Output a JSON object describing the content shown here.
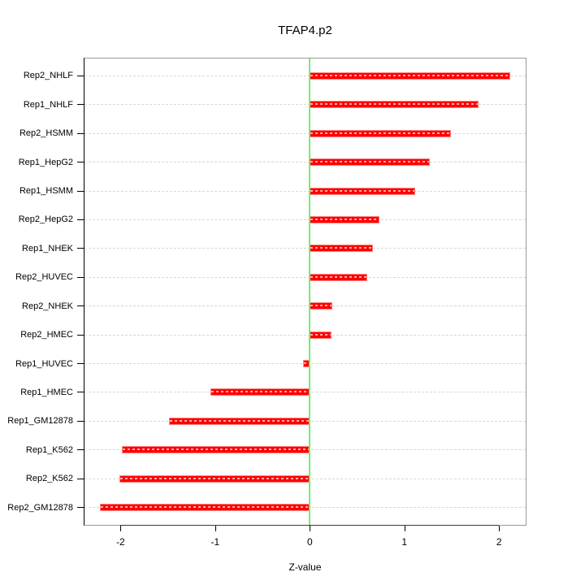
{
  "page": {
    "background": "#ffffff"
  },
  "chart_data": {
    "type": "bar",
    "orientation": "horizontal",
    "title": "TFAP4.p2",
    "xlabel": "Z-value",
    "ylabel": "",
    "categories": [
      "Rep2_NHLF",
      "Rep1_NHLF",
      "Rep2_HSMM",
      "Rep1_HepG2",
      "Rep1_HSMM",
      "Rep2_HepG2",
      "Rep1_NHEK",
      "Rep2_HUVEC",
      "Rep2_NHEK",
      "Rep2_HMEC",
      "Rep1_HUVEC",
      "Rep1_HMEC",
      "Rep1_GM12878",
      "Rep1_K562",
      "Rep2_K562",
      "Rep2_GM12878"
    ],
    "values": [
      2.12,
      1.78,
      1.49,
      1.27,
      1.11,
      0.74,
      0.67,
      0.61,
      0.24,
      0.23,
      -0.07,
      -1.05,
      -1.49,
      -1.99,
      -2.01,
      -2.22
    ],
    "x_ticks": [
      -2,
      -1,
      0,
      1,
      2
    ],
    "xlim": [
      -2.39,
      2.29
    ],
    "grid": "horizontal dotted line per category",
    "legend": "none",
    "zero_reference_line": 0,
    "colors": {
      "bar": "#ff0000",
      "bar_edge": "#ff8080",
      "bar_dash": "#ffaaaa",
      "zero_line": "#70ee70",
      "grid_line": "#d8d8d8",
      "box": "#9b9b9b",
      "axis": "#000000",
      "text": "#000000"
    }
  }
}
